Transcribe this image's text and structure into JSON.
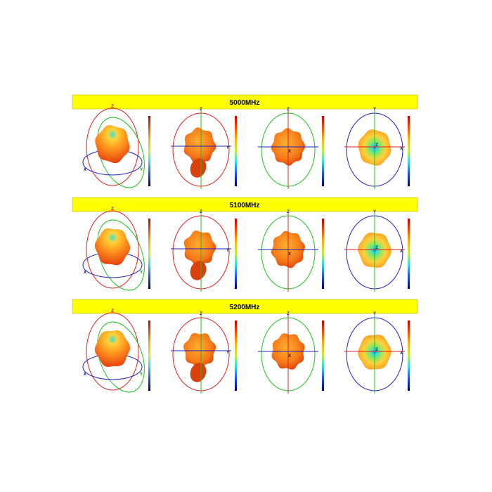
{
  "sections": [
    {
      "title": "5000MHz"
    },
    {
      "title": "5100MHz"
    },
    {
      "title": "5200MHz"
    }
  ],
  "axes": {
    "x": "X",
    "y": "Y",
    "z": "Z"
  }
}
